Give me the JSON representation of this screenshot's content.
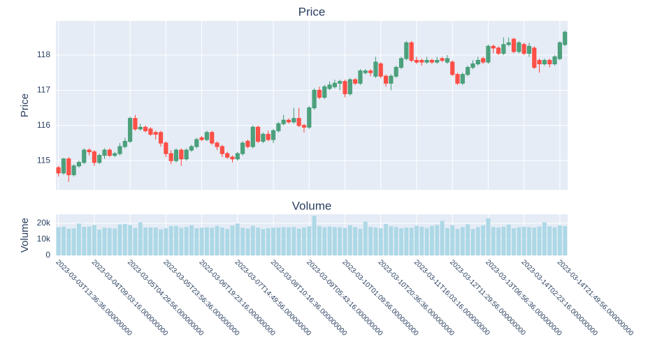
{
  "chart_data": [
    {
      "type": "candlestick",
      "title": "Price",
      "y_label": "Price",
      "x": [
        "2023-03-03T13:36:36",
        "2023-03-03T16:23:16",
        "2023-03-03T19:09:56",
        "2023-03-03T21:56:36",
        "2023-03-04T00:43:16",
        "2023-03-04T03:29:56",
        "2023-03-04T06:16:36",
        "2023-03-04T09:03:16",
        "2023-03-04T11:49:56",
        "2023-03-04T14:36:36",
        "2023-03-04T17:23:16",
        "2023-03-04T20:09:56",
        "2023-03-04T22:56:36",
        "2023-03-05T01:43:16",
        "2023-03-05T04:29:56",
        "2023-03-05T07:16:36",
        "2023-03-05T10:03:16",
        "2023-03-05T12:49:56",
        "2023-03-05T15:36:36",
        "2023-03-05T18:23:16",
        "2023-03-05T21:09:56",
        "2023-03-05T23:56:36",
        "2023-03-06T02:43:16",
        "2023-03-06T05:29:56",
        "2023-03-06T08:16:36",
        "2023-03-06T11:03:16",
        "2023-03-06T13:49:56",
        "2023-03-06T16:36:36",
        "2023-03-06T19:23:16",
        "2023-03-06T22:09:56",
        "2023-03-07T00:56:36",
        "2023-03-07T03:43:16",
        "2023-03-07T06:29:56",
        "2023-03-07T09:16:36",
        "2023-03-07T12:03:16",
        "2023-03-07T14:49:56",
        "2023-03-07T17:36:36",
        "2023-03-07T20:23:16",
        "2023-03-07T23:09:56",
        "2023-03-08T01:56:36",
        "2023-03-08T04:43:16",
        "2023-03-08T07:29:56",
        "2023-03-08T10:16:36",
        "2023-03-08T13:03:16",
        "2023-03-08T15:49:56",
        "2023-03-08T18:36:36",
        "2023-03-08T21:23:16",
        "2023-03-09T00:09:56",
        "2023-03-09T02:56:36",
        "2023-03-09T05:43:16",
        "2023-03-09T08:29:56",
        "2023-03-09T11:16:36",
        "2023-03-09T14:03:16",
        "2023-03-09T16:49:56",
        "2023-03-09T19:36:36",
        "2023-03-09T22:23:16",
        "2023-03-10T01:09:56",
        "2023-03-10T03:56:36",
        "2023-03-10T06:43:16",
        "2023-03-10T09:29:56",
        "2023-03-10T12:16:36",
        "2023-03-10T15:03:16",
        "2023-03-10T17:49:56",
        "2023-03-10T20:36:36",
        "2023-03-10T23:23:16",
        "2023-03-11T02:09:56",
        "2023-03-11T04:56:36",
        "2023-03-11T07:43:16",
        "2023-03-11T10:29:56",
        "2023-03-11T13:16:36",
        "2023-03-11T16:03:16",
        "2023-03-11T18:49:56",
        "2023-03-11T21:36:36",
        "2023-03-12T00:23:16",
        "2023-03-12T03:09:56",
        "2023-03-12T05:56:36",
        "2023-03-12T08:43:16",
        "2023-03-12T11:29:56",
        "2023-03-12T14:16:36",
        "2023-03-12T17:03:16",
        "2023-03-12T19:49:56",
        "2023-03-12T22:36:36",
        "2023-03-13T01:23:16",
        "2023-03-13T04:09:56",
        "2023-03-13T06:56:36",
        "2023-03-13T09:43:16",
        "2023-03-13T12:29:56",
        "2023-03-13T15:16:36",
        "2023-03-13T18:03:16",
        "2023-03-13T20:49:56",
        "2023-03-13T23:36:36",
        "2023-03-14T02:23:16",
        "2023-03-14T05:09:56",
        "2023-03-14T07:56:36",
        "2023-03-14T10:43:16",
        "2023-03-14T13:29:56",
        "2023-03-14T16:16:36",
        "2023-03-14T19:03:16",
        "2023-03-14T21:49:56",
        "2023-03-15T00:36:36"
      ],
      "open": [
        114.8,
        114.65,
        115.05,
        114.6,
        114.85,
        114.95,
        115.3,
        115.25,
        114.95,
        115.15,
        115.3,
        115.15,
        115.2,
        115.4,
        115.55,
        116.2,
        115.9,
        115.95,
        115.9,
        115.8,
        115.8,
        115.5,
        115.2,
        115.0,
        115.3,
        115.05,
        115.3,
        115.4,
        115.65,
        115.6,
        115.8,
        115.5,
        115.4,
        115.2,
        115.1,
        115.05,
        115.2,
        115.55,
        115.4,
        115.95,
        115.55,
        115.75,
        115.6,
        115.85,
        116.05,
        116.15,
        116.1,
        116.2,
        116.0,
        115.95,
        116.5,
        117.0,
        116.8,
        117.05,
        117.1,
        117.2,
        117.25,
        116.9,
        117.3,
        117.2,
        117.5,
        117.55,
        117.4,
        117.75,
        117.4,
        117.2,
        117.4,
        117.65,
        117.9,
        118.35,
        117.85,
        117.85,
        117.8,
        117.85,
        117.8,
        117.9,
        117.8,
        117.8,
        117.45,
        117.2,
        117.45,
        117.65,
        117.75,
        117.9,
        117.8,
        118.25,
        118.2,
        118.05,
        118.3,
        118.45,
        118.1,
        118.3,
        118.05,
        118.2,
        117.85,
        117.75,
        117.85,
        117.75,
        117.9,
        118.3
      ],
      "high": [
        114.85,
        115.08,
        115.1,
        114.9,
        115.0,
        115.35,
        115.35,
        115.3,
        115.2,
        115.35,
        115.35,
        115.25,
        115.5,
        115.65,
        116.25,
        116.3,
        116.05,
        116.0,
        115.95,
        115.85,
        115.85,
        115.55,
        115.3,
        115.35,
        115.35,
        115.35,
        115.45,
        115.65,
        115.7,
        115.85,
        115.85,
        115.55,
        115.45,
        115.25,
        115.15,
        115.25,
        115.55,
        115.6,
        116.0,
        116.0,
        115.8,
        115.85,
        115.9,
        116.1,
        116.3,
        116.2,
        116.5,
        116.5,
        116.05,
        116.55,
        117.05,
        117.1,
        117.15,
        117.25,
        117.3,
        117.3,
        117.3,
        117.35,
        117.35,
        117.6,
        117.6,
        117.6,
        117.95,
        117.8,
        117.45,
        117.45,
        117.7,
        117.95,
        118.4,
        118.4,
        117.95,
        117.9,
        117.95,
        117.9,
        117.95,
        117.95,
        118.0,
        117.85,
        117.5,
        117.5,
        117.7,
        117.85,
        117.95,
        117.95,
        118.3,
        118.3,
        118.25,
        118.5,
        118.5,
        118.5,
        118.4,
        118.35,
        118.35,
        118.25,
        117.9,
        117.9,
        117.9,
        118.0,
        118.4,
        118.7
      ],
      "low": [
        114.55,
        114.6,
        114.4,
        114.55,
        114.8,
        114.9,
        115.15,
        114.85,
        114.9,
        115.05,
        115.1,
        115.1,
        115.15,
        115.35,
        115.5,
        115.85,
        115.85,
        115.8,
        115.7,
        115.6,
        115.4,
        115.1,
        114.9,
        114.95,
        114.85,
        115.0,
        115.25,
        115.35,
        115.55,
        115.55,
        115.45,
        115.3,
        115.1,
        115.05,
        114.95,
        115.0,
        115.15,
        115.35,
        115.35,
        115.5,
        115.5,
        115.55,
        115.5,
        115.8,
        116.0,
        116.05,
        116.05,
        115.95,
        115.8,
        115.9,
        116.45,
        116.75,
        116.75,
        117.0,
        117.05,
        117.0,
        116.8,
        116.85,
        117.15,
        117.15,
        117.45,
        117.4,
        117.35,
        117.35,
        117.1,
        117.0,
        117.35,
        117.6,
        117.85,
        117.8,
        117.75,
        117.7,
        117.75,
        117.75,
        117.75,
        117.8,
        117.75,
        117.4,
        117.15,
        117.15,
        117.4,
        117.6,
        117.7,
        117.75,
        117.75,
        118.05,
        118.0,
        118.0,
        118.25,
        118.05,
        118.05,
        118.0,
        117.95,
        117.6,
        117.5,
        117.7,
        117.65,
        117.7,
        117.85,
        118.25
      ],
      "close": [
        114.65,
        115.05,
        114.6,
        114.85,
        114.95,
        115.3,
        115.25,
        114.95,
        115.15,
        115.3,
        115.15,
        115.2,
        115.4,
        115.55,
        116.2,
        115.9,
        115.95,
        115.85,
        115.75,
        115.75,
        115.5,
        115.2,
        115.0,
        115.3,
        115.05,
        115.3,
        115.4,
        115.6,
        115.6,
        115.8,
        115.5,
        115.4,
        115.2,
        115.1,
        115.05,
        115.2,
        115.5,
        115.4,
        115.95,
        115.55,
        115.75,
        115.6,
        115.85,
        116.05,
        116.15,
        116.1,
        116.2,
        116.0,
        115.95,
        116.5,
        117.0,
        116.8,
        117.1,
        117.15,
        117.2,
        117.25,
        116.9,
        117.3,
        117.2,
        117.55,
        117.55,
        117.5,
        117.8,
        117.4,
        117.2,
        117.4,
        117.65,
        117.9,
        118.35,
        117.85,
        117.8,
        117.8,
        117.85,
        117.8,
        117.85,
        117.85,
        117.9,
        117.45,
        117.2,
        117.45,
        117.65,
        117.75,
        117.85,
        117.8,
        118.25,
        118.2,
        118.05,
        118.3,
        118.35,
        118.1,
        118.35,
        118.05,
        118.25,
        117.65,
        117.75,
        117.85,
        117.75,
        117.95,
        118.35,
        118.65
      ],
      "increasing_color": "#3d9970",
      "decreasing_color": "#ff4136",
      "xlim": [
        "2023-03-03T12:13:16",
        "2023-03-15T02:03:16"
      ],
      "ylim": [
        114.17,
        118.97
      ],
      "yticks": [
        115,
        116,
        117,
        118
      ],
      "grid": true
    },
    {
      "type": "bar",
      "title": "Volume",
      "y_label": "Volume",
      "values": [
        17500,
        17800,
        16500,
        16800,
        19800,
        17700,
        17900,
        18800,
        16000,
        17200,
        17000,
        16700,
        19200,
        19500,
        18800,
        17000,
        20500,
        17300,
        17400,
        17300,
        16200,
        16900,
        18200,
        18300,
        17100,
        17600,
        18700,
        16900,
        17200,
        17400,
        17100,
        18300,
        17300,
        16400,
        18500,
        19800,
        17100,
        16700,
        18300,
        17300,
        16400,
        16900,
        17200,
        17200,
        17500,
        17400,
        17600,
        16600,
        17300,
        18000,
        24500,
        18200,
        17400,
        17900,
        17500,
        17400,
        17100,
        18700,
        17600,
        16500,
        21000,
        17600,
        17300,
        16800,
        19500,
        18100,
        17600,
        16800,
        17300,
        17200,
        18400,
        17800,
        17000,
        18300,
        18900,
        21500,
        17000,
        18700,
        16500,
        17600,
        19300,
        16400,
        17500,
        18600,
        23000,
        17600,
        17300,
        17800,
        19100,
        16800,
        17400,
        17800,
        17500,
        17200,
        17900,
        20500,
        18000,
        17400,
        18600,
        18200
      ],
      "color": "#add8e6",
      "ylim": [
        0,
        25500
      ],
      "yticks": [
        0,
        {
          "value": 10000,
          "label": "10k"
        },
        {
          "value": 20000,
          "label": "20k"
        }
      ],
      "xticks": [
        {
          "value": "2023-03-03T13:36:36",
          "label": "2023-03-03T13:36:36.000000000"
        },
        {
          "value": "2023-03-04T09:03:16",
          "label": "2023-03-04T09:03:16.000000000"
        },
        {
          "value": "2023-03-05T04:29:56",
          "label": "2023-03-05T04:29:56.000000000"
        },
        {
          "value": "2023-03-05T23:56:36",
          "label": "2023-03-05T23:56:36.000000000"
        },
        {
          "value": "2023-03-06T19:23:16",
          "label": "2023-03-06T19:23:16.000000000"
        },
        {
          "value": "2023-03-07T14:49:56",
          "label": "2023-03-07T14:49:56.000000000"
        },
        {
          "value": "2023-03-08T10:16:36",
          "label": "2023-03-08T10:16:36.000000000"
        },
        {
          "value": "2023-03-09T05:43:16",
          "label": "2023-03-09T05:43:16.000000000"
        },
        {
          "value": "2023-03-10T01:09:56",
          "label": "2023-03-10T01:09:56.000000000"
        },
        {
          "value": "2023-03-10T20:36:36",
          "label": "2023-03-10T20:36:36.000000000"
        },
        {
          "value": "2023-03-11T16:03:16",
          "label": "2023-03-11T16:03:16.000000000"
        },
        {
          "value": "2023-03-12T11:29:56",
          "label": "2023-03-12T11:29:56.000000000"
        },
        {
          "value": "2023-03-13T06:56:36",
          "label": "2023-03-13T06:56:36.000000000"
        },
        {
          "value": "2023-03-14T02:23:16",
          "label": "2023-03-14T02:23:16.000000000"
        },
        {
          "value": "2023-03-14T21:49:56",
          "label": "2023-03-14T21:49:56.000000000"
        }
      ],
      "grid": true
    }
  ]
}
